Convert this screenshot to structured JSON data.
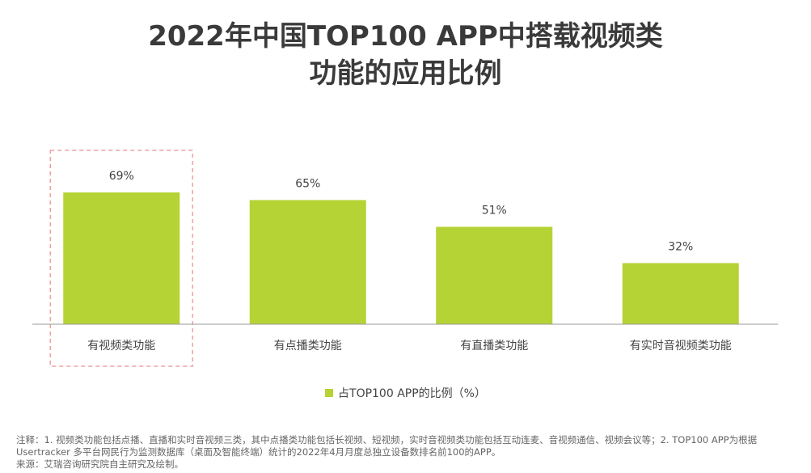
{
  "title_line1": "2022年中国TOP100 APP中搭载视频类",
  "title_line2": "功能的应用比例",
  "chart_data": {
    "type": "bar",
    "categories": [
      "有视频类功能",
      "有点播类功能",
      "有直播类功能",
      "有实时音视频类功能"
    ],
    "series": [
      {
        "name": "占TOP100 APP的比例（%）",
        "values": [
          69,
          65,
          51,
          32
        ]
      }
    ],
    "value_labels": [
      "69%",
      "65%",
      "51%",
      "32%"
    ],
    "ylim": [
      0,
      100
    ],
    "grid": false,
    "legend_position": "bottom-center",
    "highlighted_category": "有视频类功能"
  },
  "colors": {
    "bar": "#b5d334",
    "highlight_border": "#f0a0a0",
    "axis": "#9a9a9a"
  },
  "notes": {
    "line1": "注释：1. 视频类功能包括点播、直播和实时音视频三类，其中点播类功能包括长视频、短视频，实时音视频类功能包括互动连麦、音视频通信、视频会议等；2. TOP100 APP为根据",
    "line2": "Usertracker 多平台网民行为监测数据库（桌面及智能终端）统计的2022年4月月度总独立设备数排名前100的APP。",
    "line3": "来源：艾瑞咨询研究院自主研究及绘制。"
  }
}
